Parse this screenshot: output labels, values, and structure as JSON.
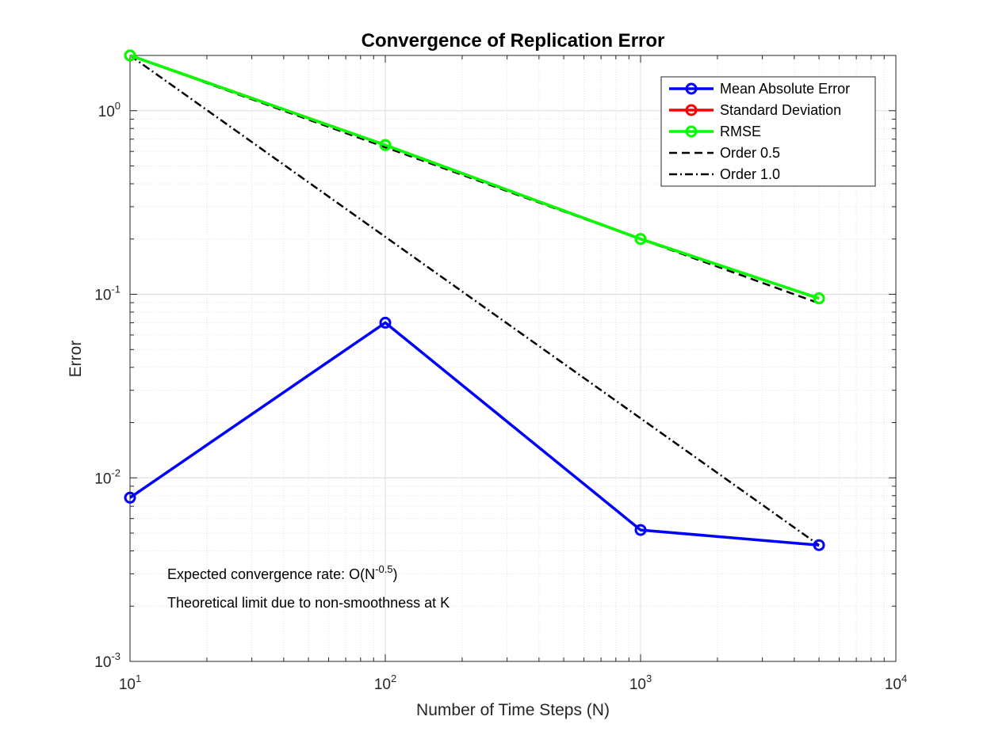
{
  "chart_data": {
    "type": "line",
    "title": "Convergence of Replication Error",
    "xlabel": "Number of Time Steps (N)",
    "ylabel": "Error",
    "xscale": "log",
    "yscale": "log",
    "xlim": [
      10,
      10000
    ],
    "ylim": [
      0.001,
      2
    ],
    "grid": "on (major and minor)",
    "legend_position": "top-right",
    "x_ticks": [
      {
        "value": 10,
        "base": "10",
        "exp": "1"
      },
      {
        "value": 100,
        "base": "10",
        "exp": "2"
      },
      {
        "value": 1000,
        "base": "10",
        "exp": "3"
      },
      {
        "value": 10000,
        "base": "10",
        "exp": "4"
      }
    ],
    "y_ticks": [
      {
        "value": 0.001,
        "base": "10",
        "exp": "-3"
      },
      {
        "value": 0.01,
        "base": "10",
        "exp": "-2"
      },
      {
        "value": 0.1,
        "base": "10",
        "exp": "-1"
      },
      {
        "value": 1,
        "base": "10",
        "exp": "0"
      }
    ],
    "x": [
      10,
      100,
      1000,
      5000
    ],
    "series": [
      {
        "name": "Mean Absolute Error",
        "values": [
          0.0078,
          0.07,
          0.0052,
          0.0043
        ],
        "color": "#0000ff",
        "style": "solid",
        "marker": "circle"
      },
      {
        "name": "Standard Deviation",
        "values": [
          2.0,
          0.65,
          0.2,
          0.095
        ],
        "color": "#ff0000",
        "style": "solid",
        "marker": "circle"
      },
      {
        "name": "RMSE",
        "values": [
          2.0,
          0.65,
          0.2,
          0.095
        ],
        "color": "#00ff00",
        "style": "solid",
        "marker": "circle"
      },
      {
        "name": "Order 0.5",
        "x": [
          10,
          5000
        ],
        "values": [
          2.0,
          0.0894
        ],
        "color": "#000000",
        "style": "dashed",
        "marker": "none"
      },
      {
        "name": "Order 1.0",
        "x": [
          10,
          5000
        ],
        "values": [
          2.0,
          0.0043
        ],
        "color": "#000000",
        "style": "dashdot",
        "marker": "none"
      }
    ],
    "annotations": [
      {
        "prefix": "Expected convergence rate: O(N",
        "sup": "-0.5",
        "suffix": ")"
      },
      {
        "prefix": "Theoretical limit due to non-smoothness at K",
        "sup": "",
        "suffix": ""
      }
    ]
  }
}
